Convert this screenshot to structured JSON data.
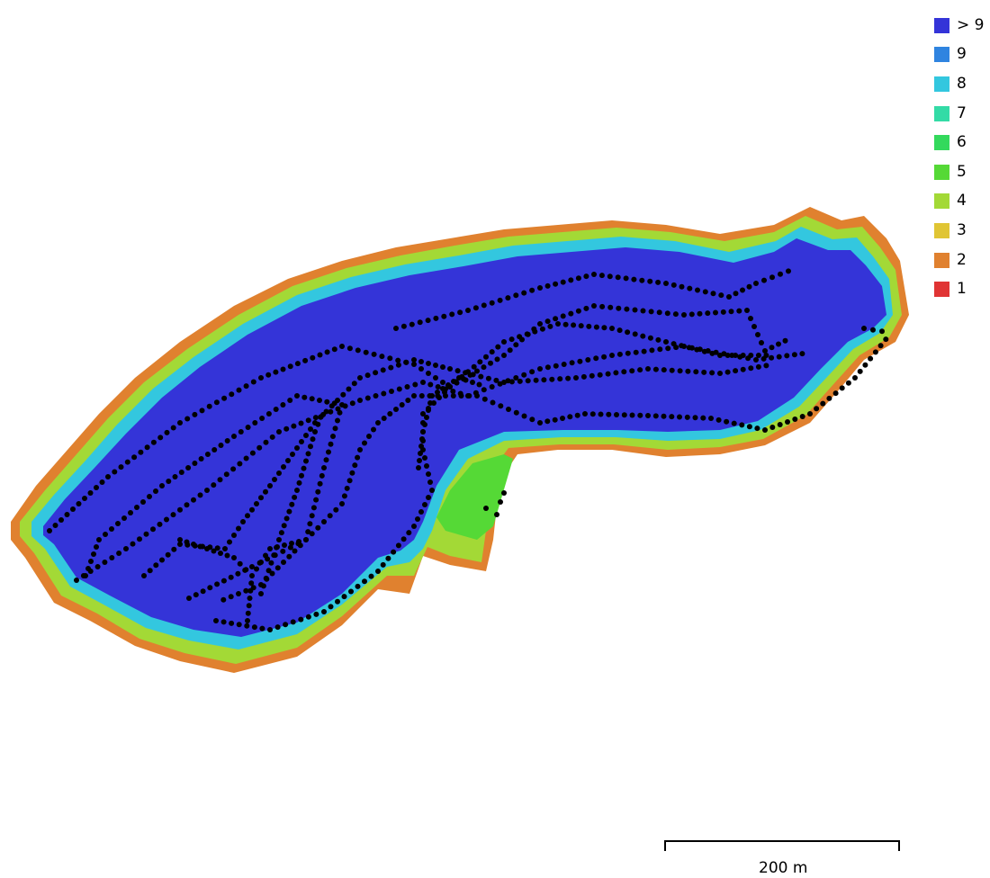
{
  "legend": {
    "items": [
      {
        "label": "> 9",
        "color": "#3434d8"
      },
      {
        "label": "9",
        "color": "#2f84e0"
      },
      {
        "label": "8",
        "color": "#33c7df"
      },
      {
        "label": "7",
        "color": "#33dba6"
      },
      {
        "label": "6",
        "color": "#33d95c"
      },
      {
        "label": "5",
        "color": "#55d936"
      },
      {
        "label": "4",
        "color": "#a3d936"
      },
      {
        "label": "3",
        "color": "#e0c534"
      },
      {
        "label": "2",
        "color": "#e0812f"
      },
      {
        "label": "1",
        "color": "#e03434"
      }
    ]
  },
  "scale": {
    "label": "200 m"
  },
  "map": {
    "coverage_colors": {
      "outer": "#e0812f",
      "mid": "#a3d936",
      "inner": "#33c7df",
      "core": "#3434d8",
      "patch": "#55d936",
      "points": "#000000"
    }
  }
}
